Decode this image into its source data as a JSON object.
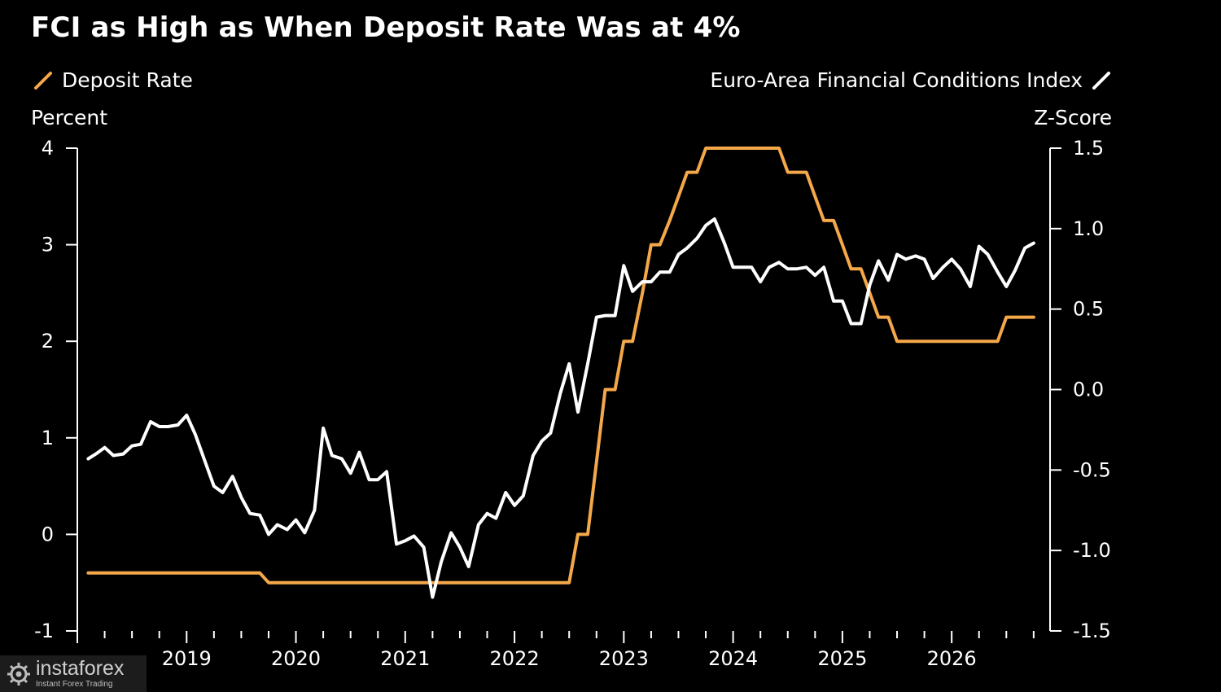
{
  "watermark": {
    "brand": "instaforex",
    "tagline": "Instant Forex Trading"
  },
  "colors": {
    "deposit_rate": "#f5a84a",
    "fci": "#ffffff",
    "background": "#000000",
    "axis": "#ffffff"
  },
  "chart_data": {
    "type": "line",
    "title": "FCI as High as When Deposit Rate Was at 4%",
    "legend_placement": "top",
    "grid": false,
    "left_axis": {
      "label": "Percent",
      "range": [
        -1,
        4
      ],
      "ticks": [
        "4",
        "3",
        "2",
        "1",
        "0",
        "-1"
      ],
      "tick_values": [
        4,
        3,
        2,
        1,
        0,
        -1
      ]
    },
    "right_axis": {
      "label": "Z-Score",
      "range": [
        -1.5,
        1.5
      ],
      "ticks": [
        "1.5",
        "1.0",
        "0.5",
        "0.0",
        "-0.5",
        "-1.0",
        "-1.5"
      ],
      "tick_values": [
        1.5,
        1.0,
        0.5,
        0.0,
        -0.5,
        -1.0,
        -1.5
      ]
    },
    "x_axis": {
      "range": [
        2018.0,
        2026.9
      ],
      "tick_labels": [
        "2019",
        "2020",
        "2021",
        "2022",
        "2023",
        "2024",
        "2025",
        "2026"
      ],
      "tick_values": [
        2019,
        2020,
        2021,
        2022,
        2023,
        2024,
        2025,
        2026
      ]
    },
    "series": [
      {
        "name": "Deposit Rate",
        "axis": "left",
        "x": [
          2018.1,
          2019.67,
          2019.75,
          2022.5,
          2022.58,
          2022.67,
          2022.75,
          2022.83,
          2022.92,
          2023.0,
          2023.08,
          2023.17,
          2023.25,
          2023.33,
          2023.42,
          2023.5,
          2023.58,
          2023.67,
          2023.75,
          2024.42,
          2024.5,
          2024.67,
          2024.75,
          2024.83,
          2024.92,
          2025.0,
          2025.08,
          2025.17,
          2025.25,
          2025.33,
          2025.42,
          2025.5,
          2026.42,
          2026.5,
          2026.75
        ],
        "y": [
          -0.4,
          -0.4,
          -0.5,
          -0.5,
          0.0,
          0.0,
          0.75,
          1.5,
          1.5,
          2.0,
          2.0,
          2.5,
          3.0,
          3.0,
          3.25,
          3.5,
          3.75,
          3.75,
          4.0,
          4.0,
          3.75,
          3.75,
          3.5,
          3.25,
          3.25,
          3.0,
          2.75,
          2.75,
          2.5,
          2.25,
          2.25,
          2.0,
          2.0,
          2.25,
          2.25
        ]
      },
      {
        "name": "Euro-Area Financial Conditions Index",
        "axis": "right",
        "x": [
          2018.1,
          2018.17,
          2018.25,
          2018.33,
          2018.42,
          2018.5,
          2018.58,
          2018.67,
          2018.75,
          2018.83,
          2018.92,
          2019.0,
          2019.08,
          2019.17,
          2019.25,
          2019.33,
          2019.42,
          2019.5,
          2019.58,
          2019.67,
          2019.75,
          2019.83,
          2019.92,
          2020.0,
          2020.08,
          2020.17,
          2020.25,
          2020.33,
          2020.42,
          2020.5,
          2020.58,
          2020.67,
          2020.75,
          2020.83,
          2020.92,
          2021.0,
          2021.08,
          2021.17,
          2021.25,
          2021.33,
          2021.42,
          2021.5,
          2021.58,
          2021.67,
          2021.75,
          2021.83,
          2021.92,
          2022.0,
          2022.08,
          2022.17,
          2022.25,
          2022.33,
          2022.42,
          2022.5,
          2022.58,
          2022.67,
          2022.75,
          2022.83,
          2022.92,
          2023.0,
          2023.08,
          2023.17,
          2023.25,
          2023.33,
          2023.42,
          2023.5,
          2023.58,
          2023.67,
          2023.75,
          2023.83,
          2023.92,
          2024.0,
          2024.08,
          2024.17,
          2024.25,
          2024.33,
          2024.42,
          2024.5,
          2024.58,
          2024.67,
          2024.75,
          2024.83,
          2024.92,
          2025.0,
          2025.08,
          2025.17,
          2025.25,
          2025.33,
          2025.42,
          2025.5,
          2025.58,
          2025.67,
          2025.75,
          2025.83,
          2025.92,
          2026.0,
          2026.08,
          2026.17,
          2026.25,
          2026.33,
          2026.42,
          2026.5,
          2026.58,
          2026.67,
          2026.75
        ],
        "y": [
          -0.43,
          -0.4,
          -0.36,
          -0.41,
          -0.4,
          -0.35,
          -0.34,
          -0.2,
          -0.23,
          -0.23,
          -0.22,
          -0.16,
          -0.28,
          -0.45,
          -0.6,
          -0.64,
          -0.54,
          -0.67,
          -0.77,
          -0.78,
          -0.9,
          -0.84,
          -0.87,
          -0.81,
          -0.89,
          -0.75,
          -0.24,
          -0.41,
          -0.43,
          -0.52,
          -0.39,
          -0.56,
          -0.56,
          -0.51,
          -0.96,
          -0.94,
          -0.91,
          -0.98,
          -1.29,
          -1.07,
          -0.89,
          -0.98,
          -1.1,
          -0.84,
          -0.77,
          -0.8,
          -0.64,
          -0.72,
          -0.66,
          -0.41,
          -0.32,
          -0.27,
          -0.02,
          0.16,
          -0.14,
          0.16,
          0.45,
          0.46,
          0.46,
          0.77,
          0.61,
          0.67,
          0.67,
          0.73,
          0.73,
          0.84,
          0.88,
          0.94,
          1.02,
          1.06,
          0.91,
          0.76,
          0.76,
          0.76,
          0.67,
          0.76,
          0.79,
          0.75,
          0.75,
          0.76,
          0.71,
          0.76,
          0.55,
          0.55,
          0.41,
          0.41,
          0.65,
          0.8,
          0.68,
          0.84,
          0.81,
          0.83,
          0.81,
          0.69,
          0.76,
          0.81,
          0.75,
          0.64,
          0.89,
          0.84,
          0.73,
          0.64,
          0.74,
          0.88,
          0.91
        ]
      }
    ]
  }
}
